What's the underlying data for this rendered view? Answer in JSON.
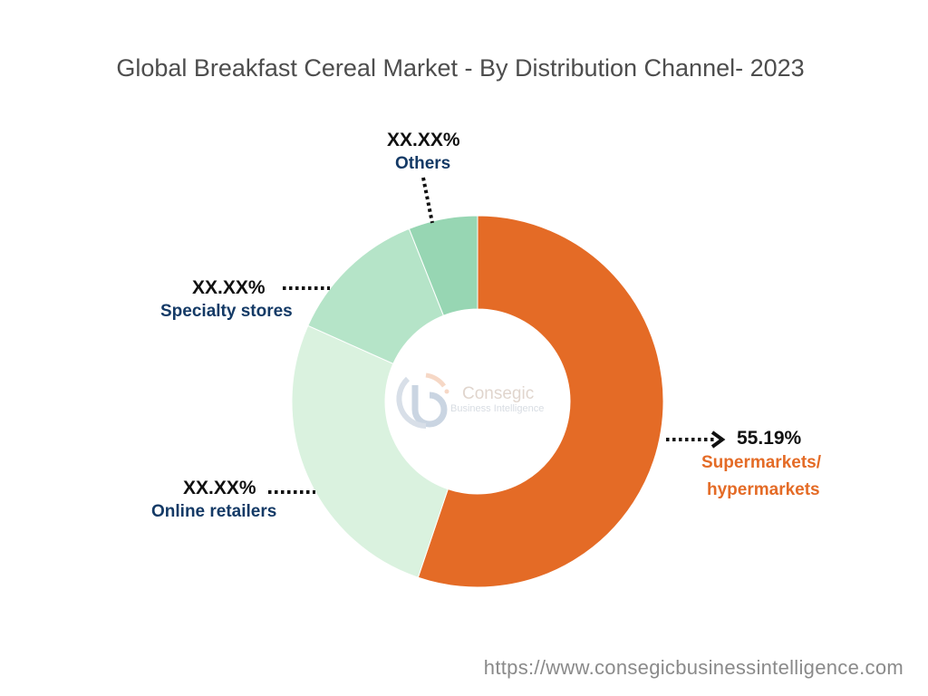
{
  "chart_data": {
    "type": "pie",
    "donut": true,
    "title": "Global Breakfast Cereal Market - By Distribution Channel- 2023",
    "slices": [
      {
        "name": "Supermarkets/ hypermarkets",
        "value": 55.19,
        "label": "55.19%",
        "color": "#E46B26"
      },
      {
        "name": "Online retailers",
        "value": 26.5,
        "label": "XX.XX%",
        "color": "#DAF2DF"
      },
      {
        "name": "Specialty stores",
        "value": 12.3,
        "label": "XX.XX%",
        "color": "#B5E4C8"
      },
      {
        "name": "Others",
        "value": 6.01,
        "label": "XX.XX%",
        "color": "#97D6B3"
      }
    ],
    "label_lines": [
      "Supermarkets/",
      "hypermarkets"
    ]
  },
  "watermark": {
    "brand": "Consegic",
    "tagline": "Business Intelligence"
  },
  "footer_url": "https://www.consegicbusinessintelligence.com"
}
